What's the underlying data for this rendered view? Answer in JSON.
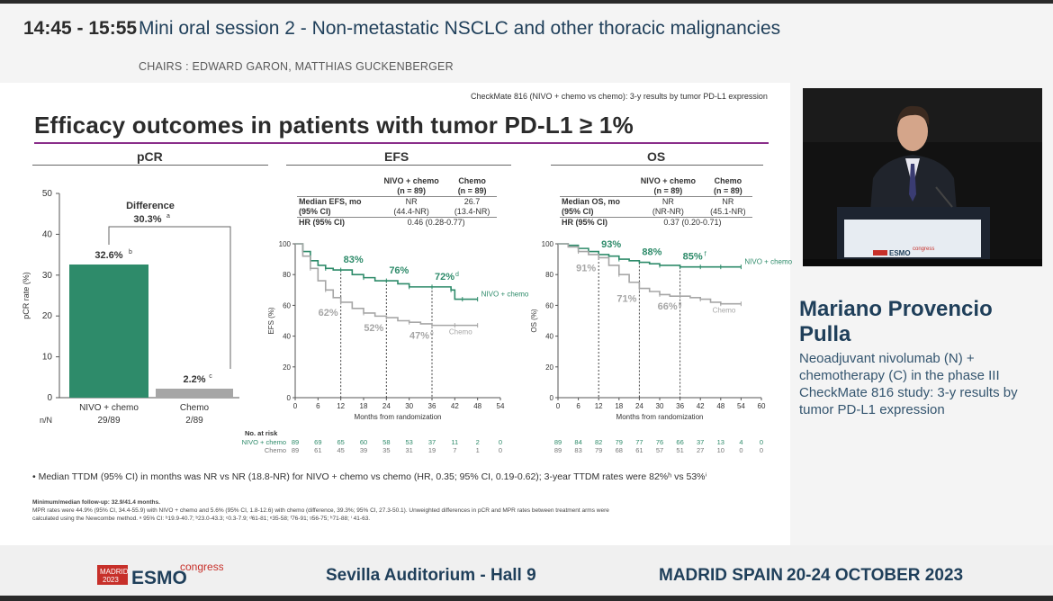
{
  "session": {
    "time": "14:45 - 15:55",
    "title": "Mini oral session 2 - Non-metastatic NSCLC and other thoracic malignancies",
    "chairs": "CHAIRS : EDWARD GARON, MATTHIAS GUCKENBERGER"
  },
  "slide": {
    "header": "CheckMate 816 (NIVO + chemo vs chemo): 3-y results by tumor PD-L1 expression",
    "title": "Efficacy outcomes in patients with tumor PD-L1 ≥ 1%",
    "sections": {
      "pcr": "pCR",
      "efs": "EFS",
      "os": "OS"
    },
    "pcr": {
      "difference_label": "Difference",
      "difference_value": "30.3%",
      "difference_sup": "a",
      "ylabel": "pCR rate (%)",
      "nn_label": "n/N",
      "bars": [
        {
          "label": "NIVO + chemo",
          "value_label": "32.6%",
          "sup": "b",
          "nn": "29/89"
        },
        {
          "label": "Chemo",
          "value_label": "2.2%",
          "sup": "c",
          "nn": "2/89"
        }
      ]
    },
    "efs_table": {
      "col1": "NIVO + chemo",
      "col1n": "(n = 89)",
      "col2": "Chemo",
      "col2n": "(n = 89)",
      "r1_label": "Median EFS, mo",
      "r1_label2": "(95% CI)",
      "r1_c1": "NR",
      "r1_c1b": "(44.4-NR)",
      "r1_c2": "26.7",
      "r1_c2b": "(13.4-NR)",
      "r2_label": "HR (95% CI)",
      "r2_val": "0.46 (0.28-0.77)"
    },
    "os_table": {
      "col1": "NIVO + chemo",
      "col1n": "(n = 89)",
      "col2": "Chemo",
      "col2n": "(n = 89)",
      "r1_label": "Median OS, mo",
      "r1_label2": "(95% CI)",
      "r1_c1": "NR",
      "r1_c1b": "(NR-NR)",
      "r1_c2": "NR",
      "r1_c2b": "(45.1-NR)",
      "r2_label": "HR (95% CI)",
      "r2_val": "0.37 (0.20-0.71)"
    },
    "risk": {
      "label": "No. at risk",
      "nivo_label": "NIVO + chemo",
      "chemo_label": "Chemo",
      "efs_nivo": [
        "89",
        "69",
        "65",
        "60",
        "58",
        "53",
        "37",
        "11",
        "2",
        "0"
      ],
      "efs_chemo": [
        "89",
        "61",
        "45",
        "39",
        "35",
        "31",
        "19",
        "7",
        "1",
        "0"
      ],
      "os_nivo": [
        "89",
        "84",
        "82",
        "79",
        "77",
        "76",
        "66",
        "37",
        "13",
        "4",
        "0"
      ],
      "os_chemo": [
        "89",
        "83",
        "79",
        "68",
        "61",
        "57",
        "51",
        "27",
        "10",
        "0",
        "0"
      ]
    },
    "notes": "•  Median TTDM (95% CI) in months was NR vs NR (18.8-NR) for NIVO + chemo vs chemo (HR, 0.35; 95% CI, 0.19-0.62); 3-year TTDM rates were 82%ʰ vs 53%ⁱ",
    "footnote_1": "Minimum/median follow-up: 32.9/41.4 months.",
    "footnote_2": "MPR rates were 44.9% (95% CI, 34.4-55.9) with NIVO + chemo and 5.6% (95% CI, 1.8-12.6) with chemo (difference, 39.3%; 95% CI, 27.3-50.1). Unweighted differences in pCR and MPR rates between treatment arms were",
    "footnote_3": "calculated using the Newcombe method. ᵃ 95% CI: ᵇ19.9-40.7; ᵇ23.0-43.3; ᶜ0.3-7.9; ᵈ61-81; ᵉ35-58; ᶠ76-91; ᵍ56-75; ʰ71-88; ⁱ 41-63."
  },
  "chart_data": [
    {
      "type": "bar",
      "title": "pCR",
      "categories": [
        "NIVO + chemo",
        "Chemo"
      ],
      "values": [
        32.6,
        2.2
      ],
      "ylabel": "pCR rate (%)",
      "ylim": [
        0,
        50
      ],
      "yticks": [
        0,
        10,
        20,
        30,
        40,
        50
      ],
      "colors": [
        "#2e8b6a",
        "#a6a6a6"
      ]
    },
    {
      "type": "line",
      "title": "EFS",
      "xlabel": "Months from randomization",
      "ylabel": "EFS (%)",
      "xlim": [
        0,
        54
      ],
      "ylim": [
        0,
        100
      ],
      "xticks": [
        0,
        6,
        12,
        18,
        24,
        30,
        36,
        42,
        48,
        54
      ],
      "yticks": [
        0,
        20,
        40,
        60,
        80,
        100
      ],
      "series": [
        {
          "name": "NIVO + chemo",
          "color": "#2e8b6a",
          "x": [
            0,
            2,
            4,
            6,
            8,
            10,
            12,
            15,
            18,
            21,
            24,
            27,
            30,
            33,
            36,
            39,
            41,
            42,
            44,
            46,
            48
          ],
          "y": [
            100,
            95,
            89,
            86,
            84,
            83,
            83,
            80,
            78,
            76,
            76,
            74,
            72,
            72,
            72,
            72,
            70,
            64,
            64,
            64,
            64
          ],
          "annotations": [
            {
              "x": 12,
              "label": "83%"
            },
            {
              "x": 24,
              "label": "76%"
            },
            {
              "x": 36,
              "label": "72%",
              "sup": "d"
            }
          ]
        },
        {
          "name": "Chemo",
          "color": "#a6a6a6",
          "x": [
            0,
            2,
            4,
            6,
            8,
            10,
            12,
            15,
            18,
            21,
            24,
            27,
            30,
            33,
            36,
            39,
            42,
            45,
            48
          ],
          "y": [
            100,
            92,
            84,
            76,
            70,
            65,
            62,
            58,
            55,
            53,
            52,
            50,
            49,
            48,
            47,
            47,
            47,
            47,
            47
          ],
          "annotations": [
            {
              "x": 12,
              "label": "62%"
            },
            {
              "x": 24,
              "label": "52%"
            },
            {
              "x": 36,
              "label": "47%",
              "sup": "e"
            }
          ]
        }
      ]
    },
    {
      "type": "line",
      "title": "OS",
      "xlabel": "Months from randomization",
      "ylabel": "OS (%)",
      "xlim": [
        0,
        60
      ],
      "ylim": [
        0,
        100
      ],
      "xticks": [
        0,
        6,
        12,
        18,
        24,
        30,
        36,
        42,
        48,
        54,
        60
      ],
      "yticks": [
        0,
        20,
        40,
        60,
        80,
        100
      ],
      "series": [
        {
          "name": "NIVO + chemo",
          "color": "#2e8b6a",
          "x": [
            0,
            3,
            6,
            9,
            12,
            15,
            18,
            21,
            24,
            27,
            30,
            33,
            36,
            39,
            42,
            45,
            48,
            51,
            54
          ],
          "y": [
            100,
            99,
            97,
            95,
            93,
            92,
            90,
            89,
            88,
            87,
            86,
            86,
            85,
            85,
            85,
            85,
            85,
            85,
            85
          ],
          "annotations": [
            {
              "x": 12,
              "label": "93%"
            },
            {
              "x": 24,
              "label": "88%"
            },
            {
              "x": 36,
              "label": "85%",
              "sup": "f"
            }
          ]
        },
        {
          "name": "Chemo",
          "color": "#a6a6a6",
          "x": [
            0,
            3,
            6,
            9,
            12,
            15,
            18,
            21,
            24,
            27,
            30,
            33,
            36,
            39,
            42,
            45,
            48,
            51,
            54
          ],
          "y": [
            100,
            98,
            95,
            93,
            91,
            86,
            80,
            75,
            71,
            69,
            67,
            66,
            66,
            65,
            64,
            62,
            61,
            61,
            61
          ],
          "annotations": [
            {
              "x": 12,
              "label": "91%"
            },
            {
              "x": 24,
              "label": "71%"
            },
            {
              "x": 36,
              "label": "66%",
              "sup": "g"
            }
          ]
        }
      ]
    }
  ],
  "speaker": {
    "name": "Mariano Provencio Pulla",
    "talk_title": "Neoadjuvant nivolumab (N) + chemotherapy (C) in the phase III CheckMate 816 study: 3-y results by tumor PD-L1 expression"
  },
  "footer": {
    "logo_city": "MADRID",
    "logo_year": "2023",
    "logo_word": "ESMO",
    "logo_congress": "congress",
    "venue": "Sevilla Auditorium - Hall 9",
    "city": "MADRID SPAIN",
    "dates": "20-24 OCTOBER 2023"
  },
  "colors": {
    "nivo": "#2e8b6a",
    "chemo": "#a6a6a6",
    "title_rule": "#8a2e8a",
    "brand_blue": "#1f3f5a",
    "esmo_red": "#c7302a"
  }
}
